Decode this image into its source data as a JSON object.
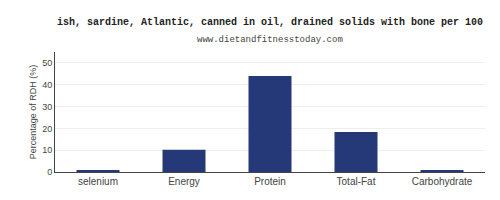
{
  "chart_data": {
    "type": "bar",
    "title": "ish, sardine, Atlantic, canned in oil, drained solids with bone per 100",
    "subtitle": "www.dietandfitnesstoday.com",
    "categories": [
      "selenium",
      "Energy",
      "Protein",
      "Total-Fat",
      "Carbohydrate"
    ],
    "values": [
      0.5,
      10.2,
      44.0,
      18.3,
      0.5
    ],
    "color": "#253878",
    "ylabel": "Percentage of RDH (%)",
    "ylim": [
      0,
      55
    ],
    "yticks": [
      0,
      10,
      20,
      30,
      40,
      50
    ],
    "grid": true
  }
}
